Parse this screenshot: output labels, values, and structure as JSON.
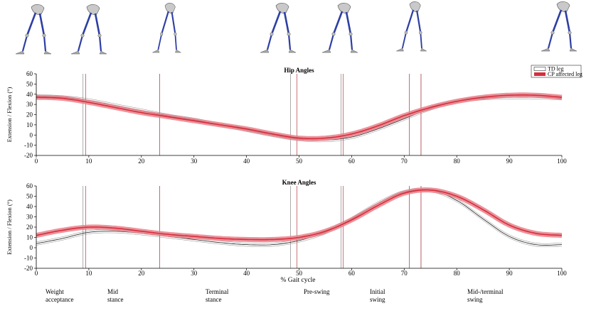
{
  "figure": {
    "xlabel": "% Gait cycle",
    "phases": [
      {
        "lines": [
          "Weight",
          "acceptance"
        ]
      },
      {
        "lines": [
          "Mid",
          "stance"
        ]
      },
      {
        "lines": [
          "Terminal",
          "stance"
        ]
      },
      {
        "lines": [
          "Pre-swing"
        ]
      },
      {
        "lines": [
          "Initial",
          "swing"
        ]
      },
      {
        "lines": [
          "Mid-/terminal",
          "swing"
        ]
      }
    ],
    "legend": [
      "TD leg",
      "CP affected leg"
    ],
    "colors": {
      "td": "#333333",
      "td_band": "#d9d9d9",
      "cp": "#d72d3c",
      "cp_band": "#e8808a",
      "event_td": "#777777",
      "event_cp": "#b33a44"
    },
    "icons": [
      "leg-skeleton-icon"
    ]
  },
  "chart_data": [
    {
      "type": "line",
      "title": "Hip Angles",
      "xlabel": "",
      "ylabel": "Extension / Flexion (°)",
      "xlim": [
        0,
        100
      ],
      "ylim": [
        -20,
        60
      ],
      "xticks": [
        0,
        10,
        20,
        30,
        40,
        50,
        60,
        70,
        80,
        90,
        100
      ],
      "yticks": [
        -20,
        -10,
        0,
        10,
        20,
        30,
        40,
        50,
        60
      ],
      "grid": false,
      "legend_position": "top-right",
      "series": [
        {
          "name": "TD leg",
          "x": [
            0,
            5,
            10,
            15,
            20,
            25,
            30,
            35,
            40,
            45,
            50,
            55,
            60,
            65,
            70,
            75,
            80,
            85,
            90,
            95,
            100
          ],
          "y": [
            38,
            37,
            34,
            29,
            24,
            19,
            15,
            10,
            5,
            0,
            -4,
            -5,
            -2,
            6,
            16,
            26,
            33,
            36,
            37,
            37,
            36
          ]
        },
        {
          "name": "CP affected leg",
          "x": [
            0,
            5,
            10,
            15,
            20,
            25,
            30,
            35,
            40,
            45,
            50,
            55,
            60,
            65,
            70,
            75,
            80,
            85,
            90,
            95,
            100
          ],
          "y": [
            37,
            36,
            32,
            27,
            22,
            18,
            14,
            10,
            6,
            1,
            -3,
            -3,
            1,
            9,
            19,
            27,
            33,
            37,
            39,
            39,
            37
          ]
        }
      ],
      "events": {
        "td": [
          8.9,
          23.5,
          48.4,
          58,
          71,
          73.2
        ],
        "cp": [
          9.4,
          23.5,
          49.6,
          58.4,
          71,
          73.2
        ]
      }
    },
    {
      "type": "line",
      "title": "Knee Angles",
      "xlabel": "% Gait cycle",
      "ylabel": "Extension / Flexion (°)",
      "xlim": [
        0,
        100
      ],
      "ylim": [
        -20,
        60
      ],
      "xticks": [
        0,
        10,
        20,
        30,
        40,
        50,
        60,
        70,
        80,
        90,
        100
      ],
      "yticks": [
        -20,
        -10,
        0,
        10,
        20,
        30,
        40,
        50,
        60
      ],
      "grid": false,
      "series": [
        {
          "name": "TD leg",
          "x": [
            0,
            5,
            10,
            15,
            20,
            25,
            30,
            35,
            40,
            45,
            50,
            55,
            60,
            65,
            70,
            75,
            80,
            85,
            90,
            95,
            100
          ],
          "y": [
            4,
            9,
            15,
            16,
            14,
            11,
            8,
            5,
            3,
            3,
            7,
            15,
            28,
            43,
            54,
            56,
            46,
            28,
            11,
            3,
            3
          ]
        },
        {
          "name": "CP affected leg",
          "x": [
            0,
            5,
            10,
            15,
            20,
            25,
            30,
            35,
            40,
            45,
            50,
            55,
            60,
            65,
            70,
            75,
            80,
            85,
            90,
            95,
            100
          ],
          "y": [
            12,
            17,
            20,
            19,
            16,
            13,
            11,
            9,
            8,
            8,
            10,
            16,
            27,
            41,
            53,
            56,
            50,
            37,
            22,
            14,
            12
          ]
        }
      ],
      "events": {
        "td": [
          8.9,
          23.5,
          48.4,
          58,
          71,
          73.2
        ],
        "cp": [
          9.4,
          23.5,
          49.6,
          58.4,
          71,
          73.2
        ]
      }
    }
  ]
}
